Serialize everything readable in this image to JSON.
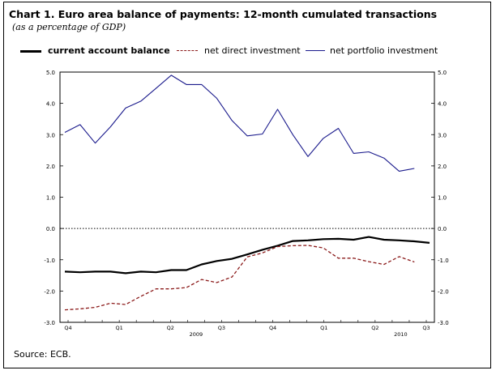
{
  "title": "Chart 1. Euro area balance of payments: 12-month cumulated transactions",
  "subtitle": "(as a percentage of GDP)",
  "source": "Source: ECB.",
  "colors": {
    "current_account": "#000000",
    "direct_investment": "#8b1a1a",
    "portfolio_investment": "#1a1a8c",
    "zero_line": "#000000"
  },
  "chart_data": {
    "type": "line",
    "title": "Chart 1. Euro area balance of payments: 12-month cumulated transactions",
    "subtitle": "(as a percentage of GDP)",
    "ylabel": "",
    "xlabel": "",
    "ylim": [
      -3.0,
      5.0
    ],
    "yticks": [
      "5.0",
      "4.0",
      "3.0",
      "2.0",
      "1.0",
      "0.0",
      "-1.0",
      "-2.0",
      "-3.0"
    ],
    "ytick_values": [
      5,
      4,
      3,
      2,
      1,
      0,
      -1,
      -2,
      -3
    ],
    "x_periods": 21,
    "quarter_labels": [
      {
        "label": "Q4",
        "index": 0
      },
      {
        "label": "Q1",
        "index": 3
      },
      {
        "label": "Q2",
        "index": 6
      },
      {
        "label": "Q3",
        "index": 9
      },
      {
        "label": "Q4",
        "index": 12
      },
      {
        "label": "Q1",
        "index": 15
      },
      {
        "label": "Q2",
        "index": 18
      },
      {
        "label": "Q3",
        "index": 21
      }
    ],
    "year_labels": [
      {
        "label": "2009",
        "index": 7.5
      },
      {
        "label": "2010",
        "index": 19.5
      }
    ],
    "zero_line": "dotted",
    "legend": [
      "current account balance",
      "net direct investment",
      "net portfolio investment"
    ],
    "series": [
      {
        "name": "current account balance",
        "style": "solid-thick",
        "x": [
          0,
          1,
          2,
          3,
          4,
          5,
          6,
          7,
          8,
          9,
          10,
          11,
          12,
          13,
          14,
          15,
          16,
          17,
          18,
          19,
          20,
          21,
          22,
          23,
          24
        ],
        "values": [
          -1.38,
          -1.4,
          -1.38,
          -1.38,
          -1.43,
          -1.38,
          -1.4,
          -1.33,
          -1.33,
          -1.15,
          -1.04,
          -0.97,
          -0.83,
          -0.68,
          -0.55,
          -0.4,
          -0.38,
          -0.34,
          -0.33,
          -0.36,
          -0.27,
          -0.36,
          -0.38,
          -0.41,
          -0.46
        ]
      },
      {
        "name": "net direct investment",
        "style": "dashed",
        "x": [
          0,
          1,
          2,
          3,
          4,
          5,
          6,
          7,
          8,
          9,
          10,
          11,
          12,
          13,
          14,
          15,
          16,
          17,
          18,
          19,
          20,
          21,
          22,
          23,
          24
        ],
        "values": [
          -2.6,
          -2.57,
          -2.52,
          -2.39,
          -2.43,
          -2.17,
          -1.93,
          -1.93,
          -1.89,
          -1.63,
          -1.73,
          -1.55,
          -0.91,
          -0.78,
          -0.58,
          -0.55,
          -0.54,
          -0.62,
          -0.95,
          -0.95,
          -1.06,
          -1.15,
          -0.9,
          -1.07,
          null
        ]
      },
      {
        "name": "net portfolio investment",
        "style": "solid-thin",
        "x": [
          0,
          1,
          2,
          3,
          4,
          5,
          6,
          7,
          8,
          9,
          10,
          11,
          12,
          13,
          14,
          15,
          16,
          17,
          18,
          19,
          20,
          21,
          22,
          23,
          24
        ],
        "values": [
          3.07,
          3.32,
          2.73,
          3.25,
          3.85,
          4.07,
          4.48,
          4.9,
          4.6,
          4.6,
          4.16,
          3.45,
          2.96,
          3.02,
          3.81,
          3.0,
          2.3,
          2.88,
          3.2,
          2.4,
          2.45,
          2.25,
          1.83,
          1.92,
          null
        ]
      }
    ]
  }
}
